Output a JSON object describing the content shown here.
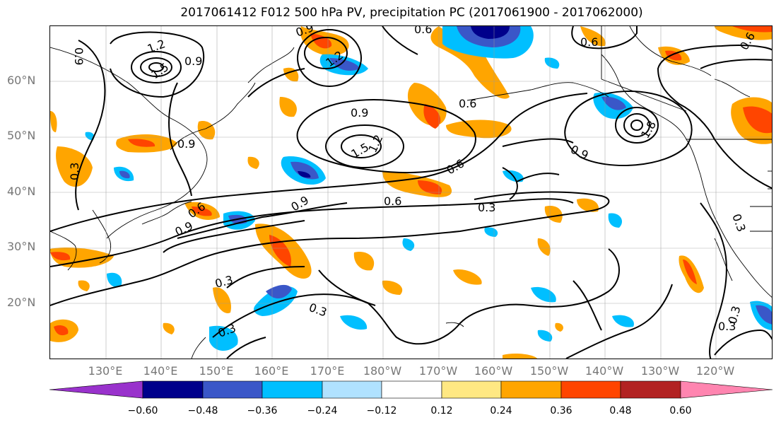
{
  "title": "2017061412 F012 500 hPa PV, precipitation PC (2017061900 - 2017062000)",
  "lat_labels": [
    "60°N",
    "50°N",
    "40°N",
    "30°N",
    "20°N"
  ],
  "lon_labels": [
    "130°E",
    "140°E",
    "150°E",
    "160°E",
    "170°E",
    "180°W",
    "170°W",
    "160°W",
    "150°W",
    "140°W",
    "130°W",
    "120°W"
  ],
  "contour_labels": [
    "0.9",
    "1.2",
    "1.5",
    "0.9",
    "0.6",
    "0.9",
    "1.2",
    "0.9",
    "1.5",
    "1.2",
    "0.6",
    "0.6",
    "0.6",
    "0.9",
    "1.8",
    "0.9",
    "0.3",
    "0.9",
    "0.6",
    "0.9",
    "0.6",
    "0.3",
    "0.3",
    "0.3",
    "0.3",
    "0.3",
    "0.3",
    "0.3",
    "0.6"
  ],
  "colorbar": {
    "ticks": [
      "−0.60",
      "−0.48",
      "−0.36",
      "−0.24",
      "−0.12",
      "0.12",
      "0.24",
      "0.36",
      "0.48",
      "0.60"
    ],
    "colors": [
      "#9932cc",
      "#00008b",
      "#3a57c8",
      "#00bfff",
      "#b0e2ff",
      "#ffffff",
      "#ffe883",
      "#ffa500",
      "#ff4500",
      "#b22222",
      "#ff85b0"
    ]
  },
  "colors": {
    "contour": "#000000",
    "grid": "#999999",
    "coast": "#000000"
  }
}
